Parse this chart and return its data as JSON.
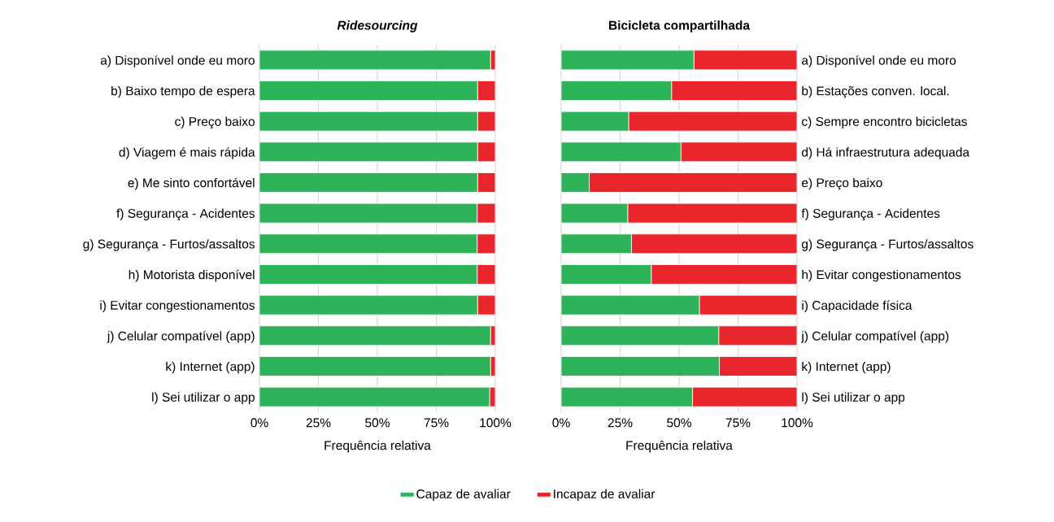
{
  "chart_data": [
    {
      "type": "bar",
      "title": "*Ridesourcing*",
      "orientation": "horizontal",
      "stacked": true,
      "xlabel": "Frequência relativa",
      "categories": [
        "a) Disponível onde eu moro",
        "b) Baixo tempo de espera",
        "c) Preço baixo",
        "d) Viagem é mais rápida",
        "e) Me sinto confortável",
        "f) Segurança - Acidentes",
        "g) Segurança - Furtos/assaltos",
        "h) Motorista disponível",
        "i) Evitar congestionamentos",
        "j) Celular compatível (app)",
        "k) Internet (app)",
        "l) Sei utilizar o app"
      ],
      "series": [
        {
          "name": "Capaz de avaliar",
          "color": "#2fb35a",
          "values": [
            98,
            92.5,
            92.5,
            92.5,
            92.5,
            92.3,
            92.3,
            92.3,
            92.5,
            98,
            98,
            97.6
          ]
        },
        {
          "name": "Incapaz de avaliar",
          "color": "#e8262b",
          "values": [
            2,
            7.5,
            7.5,
            7.5,
            7.5,
            7.7,
            7.7,
            7.7,
            7.5,
            2,
            2,
            2.4
          ]
        }
      ],
      "xlim": [
        0,
        100
      ],
      "xticks": [
        {
          "value": 0,
          "label": "0%"
        },
        {
          "value": 25,
          "label": "25%"
        },
        {
          "value": 50,
          "label": "50%"
        },
        {
          "value": 75,
          "label": "75%"
        },
        {
          "value": 100,
          "label": "100%"
        }
      ],
      "grid": "x",
      "legend": "bottom"
    },
    {
      "type": "bar",
      "title": "Bicicleta compartilhada",
      "orientation": "horizontal",
      "stacked": true,
      "xlabel": "Frequência relativa",
      "categories": [
        "a) Disponível onde eu moro",
        "b) Estações conven. local.",
        "c) Sempre encontro bicicletas",
        "d) Há infraestrutura adequada",
        "e) Preço baixo",
        "f) Segurança - Acidentes",
        "g) Segurança - Furtos/assaltos",
        "h) Evitar congestionamentos",
        "i) Capacidade física",
        "j) Celular compatível (app)",
        "k) Internet (app)",
        "l) Sei utilizar o app"
      ],
      "series": [
        {
          "color": "#2fb35a",
          "values": [
            56.3,
            46.8,
            28.6,
            50.8,
            11.9,
            28.2,
            29.8,
            38.2,
            58.6,
            66.8,
            67.1,
            55.7
          ]
        },
        {
          "color": "#e8262b",
          "values": [
            43.7,
            53.2,
            71.4,
            49.2,
            88.1,
            71.8,
            70.2,
            61.8,
            41.4,
            33.2,
            32.9,
            44.3
          ]
        }
      ],
      "xlim": [
        0,
        100
      ],
      "xticks": [
        {
          "value": 0,
          "label": "0%"
        },
        {
          "value": 25,
          "label": "25%"
        },
        {
          "value": 50,
          "label": "50%"
        },
        {
          "value": 75,
          "label": "75%"
        },
        {
          "value": 100,
          "label": "100%"
        }
      ],
      "grid": "x",
      "legend": false
    }
  ]
}
